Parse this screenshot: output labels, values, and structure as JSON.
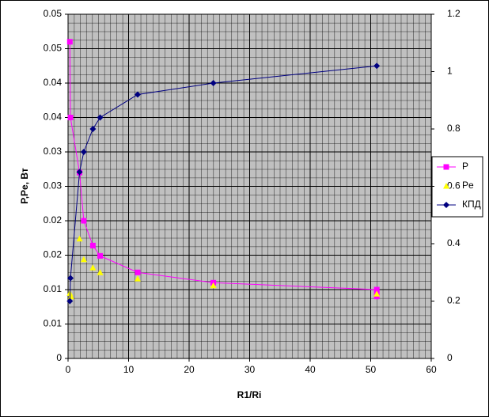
{
  "chart_data": {
    "type": "scatter-line",
    "xlabel": "R1/Ri",
    "ylabel": "P,Pe,  Вт",
    "xlim": [
      0,
      60
    ],
    "xticks": [
      0,
      10,
      20,
      30,
      40,
      50,
      60
    ],
    "ylim": [
      0,
      0.05
    ],
    "yticks": [
      0,
      {
        "value": 0.005,
        "label": "0.01"
      },
      0.01,
      {
        "value": 0.015,
        "label": "0.02"
      },
      0.02,
      {
        "value": 0.025,
        "label": "0.03"
      },
      0.03,
      {
        "value": 0.035,
        "label": "0.04"
      },
      0.04,
      {
        "value": 0.045,
        "label": "0.05"
      },
      0.05
    ],
    "y2lim": [
      0,
      1.2
    ],
    "y2ticks": [
      0,
      0.2,
      0.4,
      0.6,
      0.8,
      1,
      1.2
    ],
    "grid": true,
    "legend": "right",
    "series": [
      {
        "name": "P",
        "color": "#ff00ff",
        "marker": "square",
        "x": [
          0.3,
          0.4,
          1.9,
          2.6,
          4.1,
          5.3,
          11.5,
          24,
          51,
          51,
          51
        ],
        "values": [
          0.046,
          0.035,
          0.027,
          0.02,
          0.0164,
          0.0149,
          0.0125,
          0.011,
          0.01,
          0.0095,
          0.009
        ]
      },
      {
        "name": "Pe",
        "color": "#ffff00",
        "marker": "triangle",
        "x": [
          0.3,
          0.5,
          1.9,
          2.6,
          4.1,
          5.3,
          11.5,
          24,
          51
        ],
        "values": [
          0.0095,
          0.009,
          0.0174,
          0.0144,
          0.0132,
          0.0125,
          0.0116,
          0.0106,
          0.0094
        ]
      },
      {
        "name": "КПД",
        "color": "#000080",
        "marker": "diamond",
        "axis": "y2",
        "x": [
          0.3,
          0.4,
          1.9,
          2.6,
          4.1,
          5.3,
          11.5,
          24,
          51
        ],
        "values": [
          0.2,
          0.28,
          0.65,
          0.72,
          0.8,
          0.84,
          0.92,
          0.96,
          1.02
        ]
      }
    ]
  }
}
